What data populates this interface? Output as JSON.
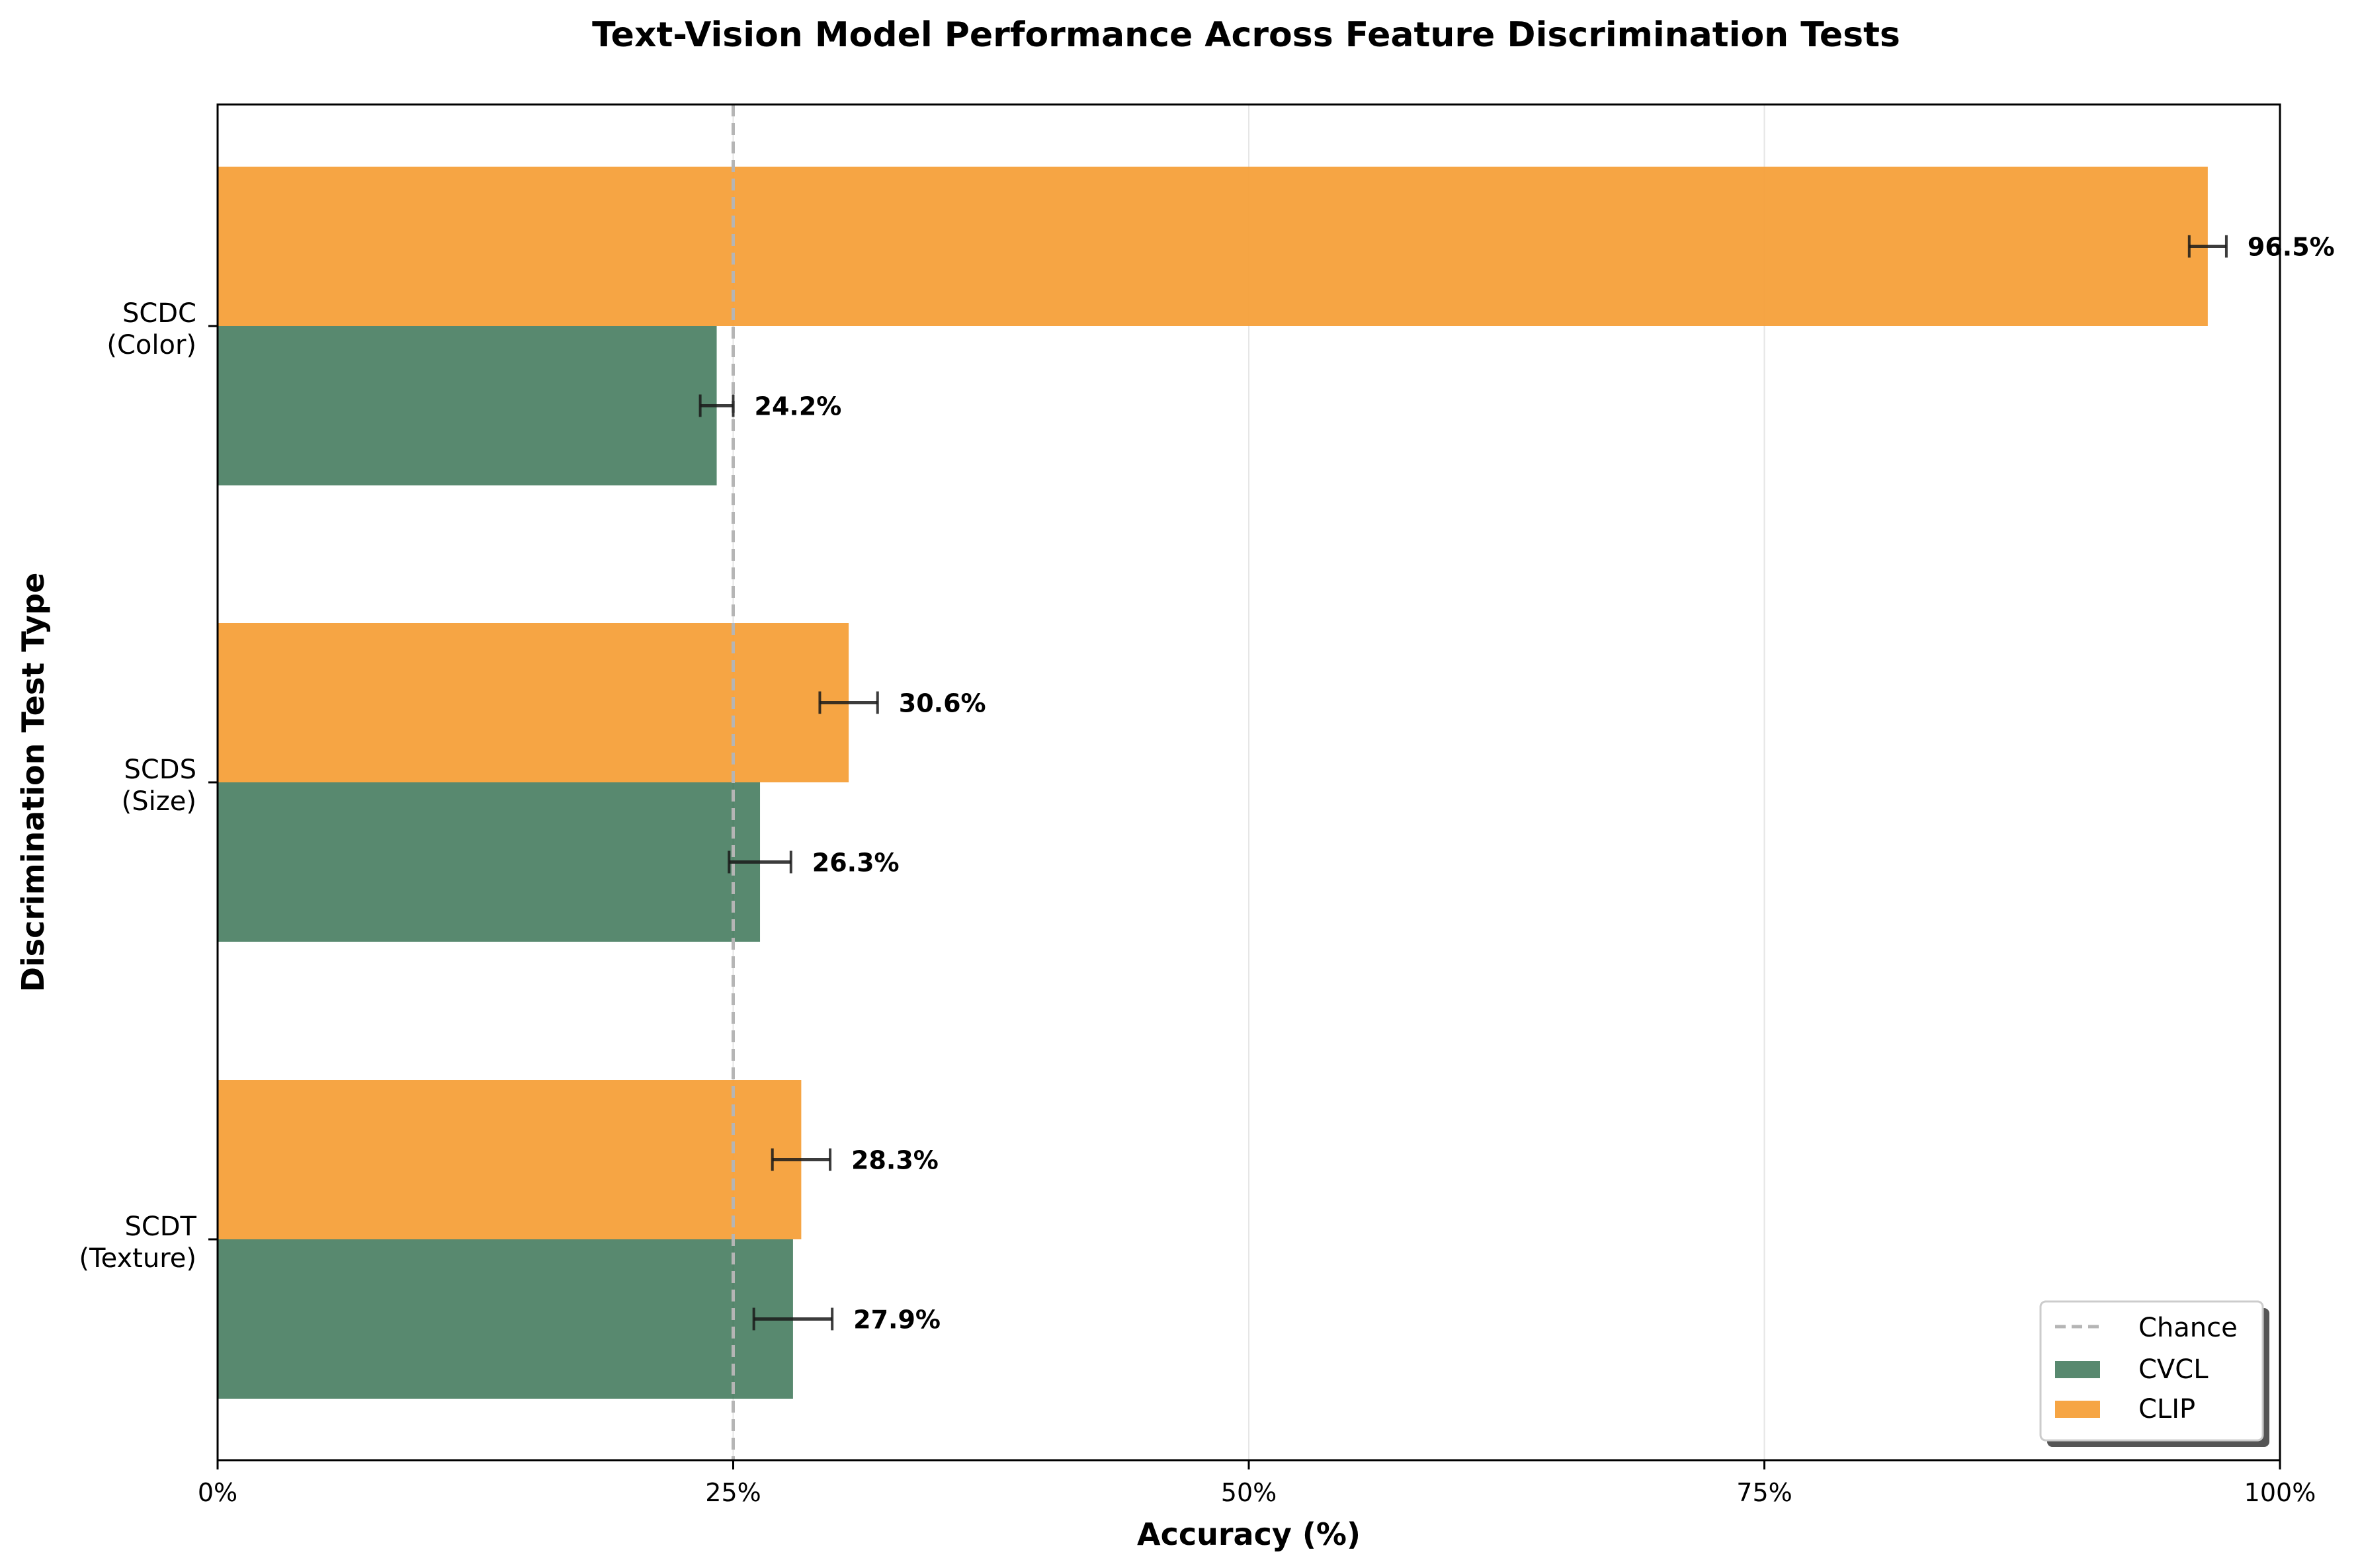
{
  "chart_data": {
    "type": "bar",
    "orientation": "horizontal",
    "title": "Text-Vision Model Performance Across Feature Discrimination Tests",
    "xlabel": "Accuracy (%)",
    "ylabel": "Discrimination Test Type",
    "xlim": [
      0,
      100
    ],
    "x_ticks": [
      0,
      25,
      50,
      75,
      100
    ],
    "x_tick_labels": [
      "0%",
      "25%",
      "50%",
      "75%",
      "100%"
    ],
    "categories": [
      {
        "line1": "SCDC",
        "line2": "(Color)"
      },
      {
        "line1": "SCDS",
        "line2": "(Size)"
      },
      {
        "line1": "SCDT",
        "line2": "(Texture)"
      }
    ],
    "series": [
      {
        "name": "CVCL",
        "color": "#2e6b4b",
        "values": [
          24.2,
          26.3,
          27.9
        ],
        "errors": [
          0.8,
          1.5,
          1.9
        ],
        "labels": [
          "24.2%",
          "26.3%",
          "27.9%"
        ]
      },
      {
        "name": "CLIP",
        "color": "#f5a03a",
        "values": [
          96.5,
          30.6,
          28.3
        ],
        "errors": [
          0.9,
          1.4,
          1.4
        ],
        "labels": [
          "96.5%",
          "30.6%",
          "28.3%"
        ]
      }
    ],
    "reference_line": {
      "name": "Chance",
      "value": 25,
      "style": "dashed",
      "color": "#b5b5b5"
    },
    "grid": "x-only",
    "legend": {
      "position": "lower-right",
      "entries": [
        "Chance",
        "CVCL",
        "CLIP"
      ]
    }
  }
}
